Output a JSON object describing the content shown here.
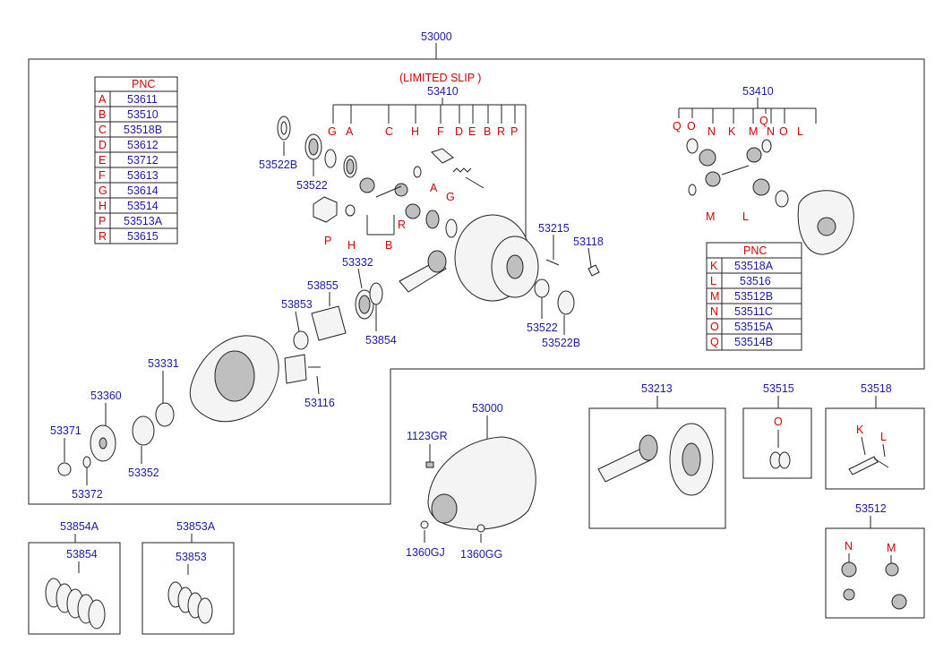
{
  "title": "53000",
  "limited_slip_title": "(LIMITED SLIP )",
  "table1": {
    "header": "PNC",
    "rows": [
      {
        "key": "A",
        "pnc": "53611"
      },
      {
        "key": "B",
        "pnc": "53510"
      },
      {
        "key": "C",
        "pnc": "53518B"
      },
      {
        "key": "D",
        "pnc": "53612"
      },
      {
        "key": "E",
        "pnc": "53712"
      },
      {
        "key": "F",
        "pnc": "53613"
      },
      {
        "key": "G",
        "pnc": "53614"
      },
      {
        "key": "H",
        "pnc": "53514"
      },
      {
        "key": "P",
        "pnc": "53513A"
      },
      {
        "key": "R",
        "pnc": "53615"
      }
    ]
  },
  "table2": {
    "header": "PNC",
    "rows": [
      {
        "key": "K",
        "pnc": "53518A"
      },
      {
        "key": "L",
        "pnc": "53516"
      },
      {
        "key": "M",
        "pnc": "53512B"
      },
      {
        "key": "N",
        "pnc": "53511C"
      },
      {
        "key": "O",
        "pnc": "53515A"
      },
      {
        "key": "Q",
        "pnc": "53514B"
      }
    ]
  },
  "labels": {
    "l53410a": "53410",
    "l53410b": "53410",
    "l53522b_a": "53522B",
    "l53522_a": "53522",
    "l53522_b": "53522",
    "l53522b_b": "53522B",
    "l53215": "53215",
    "l53118": "53118",
    "l53332": "53332",
    "l53855": "53855",
    "l53853": "53853",
    "l53854": "53854",
    "l53331": "53331",
    "l53116": "53116",
    "l53360": "53360",
    "l53371": "53371",
    "l53352": "53352",
    "l53372": "53372",
    "l53000b": "53000",
    "l1123gr": "1123GR",
    "l1360gj": "1360GJ",
    "l1360gg": "1360GG",
    "l53213": "53213",
    "l53515": "53515",
    "l53518": "53518",
    "l53512": "53512",
    "l53854a": "53854A",
    "l53854c": "53854",
    "l53853a": "53853A",
    "l53853c": "53853"
  },
  "letters_ls": {
    "g1": "G",
    "a1": "A",
    "c1": "C",
    "h1": "H",
    "f1": "F",
    "d1": "D",
    "e1": "E",
    "b1": "B",
    "r1": "R",
    "p1": "P",
    "a2": "A",
    "g2": "G",
    "r2": "R",
    "p2": "P",
    "h2": "H",
    "b2": "B"
  },
  "letters_std": {
    "q1": "Q",
    "o1": "O",
    "n1": "N",
    "k1": "K",
    "m1": "M",
    "q2": "Q",
    "n2": "N",
    "o2": "O",
    "l1": "L",
    "m2": "M",
    "l2": "L"
  },
  "letters_boxes": {
    "o515": "O",
    "k518": "K",
    "l518": "L",
    "n512": "N",
    "m512": "M"
  }
}
